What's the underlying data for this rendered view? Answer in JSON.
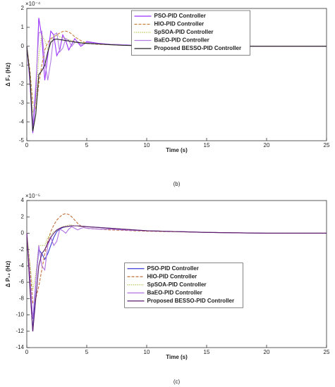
{
  "chart_data": [
    {
      "type": "line",
      "caption": "(b)",
      "xlabel": "Time (s)",
      "ylabel": "Δ F₂ (Hz)",
      "y_multiplier": "×10⁻⁴",
      "x": [
        0,
        0.25,
        0.5,
        0.75,
        1,
        1.25,
        1.5,
        1.75,
        2,
        2.25,
        2.5,
        2.75,
        3,
        3.25,
        3.5,
        3.75,
        4,
        4.25,
        4.5,
        4.75,
        5,
        6,
        7,
        8,
        10,
        15,
        20,
        25
      ],
      "xlim": [
        0,
        25
      ],
      "xticks": [
        0,
        5,
        10,
        15,
        20,
        25
      ],
      "ylim": [
        -5,
        2
      ],
      "yticks": [
        2,
        1,
        0,
        -1,
        -2,
        -3,
        -4,
        -5
      ],
      "grid": false,
      "legend": "upper-center",
      "series": [
        {
          "name": "PSO-PID Controller",
          "color": "#9b30ff",
          "dash": "solid",
          "values": [
            0,
            -1.8,
            -4.6,
            -2.5,
            1.5,
            0.5,
            -1.8,
            -0.5,
            0.8,
            0.6,
            -0.5,
            -0.2,
            0.6,
            0.3,
            -0.2,
            0.1,
            0.4,
            0.2,
            0,
            0.1,
            0.25,
            0.15,
            0.1,
            0.08,
            0.02,
            0,
            0,
            0
          ]
        },
        {
          "name": "HIO-PID Controller",
          "color": "#c8803c",
          "dash": "dashed",
          "values": [
            0,
            -1.2,
            -3.0,
            -3.3,
            -2.0,
            -1.0,
            -0.2,
            0.2,
            0.4,
            0.5,
            0.6,
            0.7,
            0.78,
            0.8,
            0.75,
            0.65,
            0.5,
            0.4,
            0.3,
            0.22,
            0.15,
            0.1,
            0.08,
            0.05,
            0.02,
            0,
            0,
            0
          ]
        },
        {
          "name": "SpSOA-PID Controller",
          "color": "#b5c040",
          "dash": "dotted",
          "values": [
            0,
            -1.4,
            -3.5,
            -3.0,
            -0.5,
            0.6,
            0.3,
            -0.2,
            0.3,
            0.5,
            0.6,
            0.5,
            0.45,
            0.4,
            0.35,
            0.3,
            0.25,
            0.22,
            0.2,
            0.18,
            0.15,
            0.12,
            0.08,
            0.05,
            0.02,
            0,
            0,
            0
          ]
        },
        {
          "name": "BaEO-PID Controller",
          "color": "#b07de0",
          "dash": "solid",
          "values": [
            0,
            -1.6,
            -4.2,
            -2.0,
            0.7,
            0.8,
            -0.8,
            -1.8,
            -0.8,
            0.6,
            0.7,
            -0.3,
            -0.1,
            0.4,
            0.3,
            0,
            0.2,
            0.25,
            0.1,
            0.1,
            0.2,
            0.12,
            0.1,
            0.08,
            0.02,
            0,
            0,
            0
          ]
        },
        {
          "name": "Proposed BESSO-PID Controller",
          "color": "#222222",
          "dash": "solid",
          "values": [
            0,
            -1.5,
            -4.5,
            -3.6,
            -1.5,
            -1.3,
            -1.0,
            -0.3,
            0.2,
            0.35,
            0.38,
            0.35,
            0.33,
            0.3,
            0.28,
            0.25,
            0.22,
            0.2,
            0.18,
            0.16,
            0.15,
            0.12,
            0.08,
            0.05,
            0.02,
            0,
            0,
            0
          ]
        }
      ]
    },
    {
      "type": "line",
      "caption": "(c)",
      "xlabel": "Time (s)",
      "ylabel": "Δ P₁₂ (Hz)",
      "y_multiplier": "×10⁻⁵",
      "x": [
        0,
        0.25,
        0.5,
        0.75,
        1,
        1.25,
        1.5,
        1.75,
        2,
        2.25,
        2.5,
        2.75,
        3,
        3.25,
        3.5,
        3.75,
        4,
        4.25,
        4.5,
        4.75,
        5,
        6,
        7,
        8,
        10,
        15,
        20,
        25
      ],
      "xlim": [
        0,
        25
      ],
      "xticks": [
        0,
        5,
        10,
        15,
        20,
        25
      ],
      "ylim": [
        -14,
        4
      ],
      "yticks": [
        4,
        2,
        0,
        -2,
        -4,
        -6,
        -8,
        -10,
        -12,
        -14
      ],
      "grid": false,
      "legend": "center",
      "series": [
        {
          "name": "PSO-PID Controller",
          "color": "#3b3bd0",
          "dash": "solid",
          "values": [
            0,
            -6,
            -12,
            -6,
            -2,
            -2.5,
            -3.2,
            -2.5,
            -1.5,
            -0.5,
            0.2,
            0.5,
            0.7,
            0.8,
            0.85,
            0.9,
            0.9,
            0.9,
            0.85,
            0.85,
            0.8,
            0.7,
            0.6,
            0.5,
            0.3,
            0.1,
            0,
            0
          ]
        },
        {
          "name": "HIO-PID Controller",
          "color": "#c0703c",
          "dash": "dashed",
          "values": [
            0,
            -4,
            -8.5,
            -8,
            -6.5,
            -4.5,
            -2.5,
            -1.0,
            0.2,
            1.0,
            1.6,
            2.0,
            2.3,
            2.4,
            2.3,
            2.0,
            1.6,
            1.2,
            0.9,
            0.7,
            0.6,
            0.5,
            0.4,
            0.35,
            0.25,
            0.1,
            0,
            0
          ]
        },
        {
          "name": "SpSOA-PID Controller",
          "color": "#a8c040",
          "dash": "dotted",
          "values": [
            0,
            -3.5,
            -7,
            -5,
            -1.5,
            -1.5,
            -1.5,
            -0.5,
            -0.2,
            0.2,
            0.3,
            0.6,
            0.8,
            0.9,
            1.0,
            1.0,
            0.9,
            0.9,
            0.85,
            0.8,
            0.8,
            0.7,
            0.6,
            0.5,
            0.3,
            0.1,
            0,
            0
          ]
        },
        {
          "name": "BaEO-PID Controller",
          "color": "#b070e0",
          "dash": "solid",
          "values": [
            0,
            -5,
            -10.5,
            -6,
            -1.5,
            -4,
            -4.5,
            -1.5,
            -0.5,
            -1.5,
            -1,
            0.5,
            0.3,
            0,
            0.5,
            0.8,
            0.6,
            0.4,
            0.6,
            0.7,
            0.6,
            0.5,
            0.5,
            0.4,
            0.3,
            0.1,
            0,
            0
          ]
        },
        {
          "name": "Proposed BESSO-PID Controller",
          "color": "#5a1a6a",
          "dash": "solid",
          "values": [
            0,
            -6.5,
            -12,
            -8,
            -4,
            -2.5,
            -2,
            -1.2,
            -0.5,
            0,
            0.4,
            0.6,
            0.75,
            0.8,
            0.85,
            0.9,
            0.9,
            0.9,
            0.85,
            0.85,
            0.8,
            0.7,
            0.6,
            0.5,
            0.3,
            0.1,
            0,
            0
          ]
        }
      ]
    }
  ]
}
